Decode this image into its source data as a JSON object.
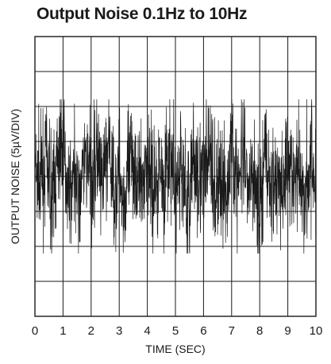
{
  "chart_data": {
    "type": "line",
    "title": "Output Noise 0.1Hz to 10Hz",
    "xlabel": "TIME (SEC)",
    "ylabel": "OUTPUT NOISE (5µV/DIV)",
    "xlim": [
      0,
      10
    ],
    "ylim": [
      -20,
      20
    ],
    "x_ticks": [
      "0",
      "1",
      "2",
      "3",
      "4",
      "5",
      "6",
      "7",
      "8",
      "9",
      "10"
    ],
    "y_divisions": 8,
    "grid": true,
    "series": [
      {
        "color": "#1a1a1a",
        "x": [
          0,
          0.2,
          0.4,
          0.6,
          0.8,
          1.0,
          1.2,
          1.4,
          1.6,
          1.8,
          2.0,
          2.2,
          2.4,
          2.6,
          2.8,
          3.0,
          3.2,
          3.4,
          3.6,
          3.8,
          4.0,
          4.2,
          4.4,
          4.6,
          4.8,
          5.0,
          5.2,
          5.4,
          5.6,
          5.8,
          6.0,
          6.2,
          6.4,
          6.6,
          6.8,
          7.0,
          7.2,
          7.4,
          7.6,
          7.8,
          8.0,
          8.2,
          8.4,
          8.6,
          8.8,
          9.0,
          9.2,
          9.4,
          9.6,
          9.8,
          10.0
        ],
        "y": [
          1,
          -3,
          5,
          -6,
          2,
          8,
          -4,
          3,
          -7,
          6,
          -2,
          4,
          -5,
          9,
          -3,
          1,
          -8,
          5,
          2,
          -4,
          7,
          -6,
          3,
          -2,
          6,
          -5,
          4,
          -9,
          2,
          5,
          -3,
          8,
          -4,
          1,
          -6,
          9,
          -2,
          4,
          -7,
          3,
          -10,
          6,
          -3,
          2,
          -5,
          7,
          -4,
          3,
          -6,
          5,
          -2
        ]
      }
    ]
  }
}
